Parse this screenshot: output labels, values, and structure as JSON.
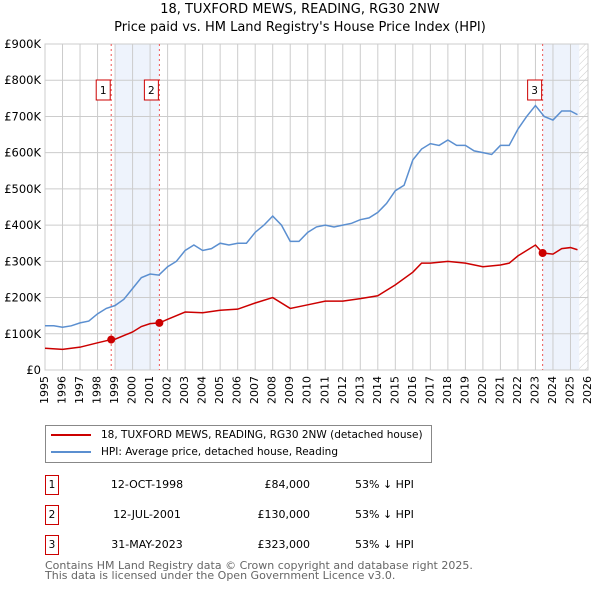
{
  "chart_data": {
    "type": "line",
    "title": "18, TUXFORD MEWS, READING, RG30 2NW",
    "subtitle": "Price paid vs. HM Land Registry's House Price Index (HPI)",
    "xlim": [
      1995,
      2026
    ],
    "ylim": [
      0,
      900000
    ],
    "yticks": [
      {
        "v": 0,
        "label": "£0"
      },
      {
        "v": 100000,
        "label": "£100K"
      },
      {
        "v": 200000,
        "label": "£200K"
      },
      {
        "v": 300000,
        "label": "£300K"
      },
      {
        "v": 400000,
        "label": "£400K"
      },
      {
        "v": 500000,
        "label": "£500K"
      },
      {
        "v": 600000,
        "label": "£600K"
      },
      {
        "v": 700000,
        "label": "£700K"
      },
      {
        "v": 800000,
        "label": "£800K"
      },
      {
        "v": 900000,
        "label": "£900K"
      }
    ],
    "xticks": [
      "1995",
      "1996",
      "1997",
      "1998",
      "1999",
      "2000",
      "2001",
      "2002",
      "2003",
      "2004",
      "2005",
      "2006",
      "2007",
      "2008",
      "2009",
      "2010",
      "2011",
      "2012",
      "2013",
      "2014",
      "2015",
      "2016",
      "2017",
      "2018",
      "2019",
      "2020",
      "2021",
      "2022",
      "2023",
      "2024",
      "2025",
      "2026"
    ],
    "grid": true,
    "series": [
      {
        "name": "18, TUXFORD MEWS, READING, RG30 2NW (detached house)",
        "color": "#cc0000",
        "x": [
          1995,
          1996,
          1997,
          1998,
          1998.78,
          1999,
          2000,
          2000.5,
          2001,
          2001.53,
          2002,
          2003,
          2004,
          2005,
          2006,
          2007,
          2008,
          2009,
          2010,
          2011,
          2012,
          2013,
          2014,
          2015,
          2016,
          2016.5,
          2017,
          2018,
          2019,
          2020,
          2021,
          2021.5,
          2022,
          2023,
          2023.41,
          2024,
          2024.5,
          2025,
          2025.4
        ],
        "y": [
          60000,
          57000,
          63000,
          75000,
          84000,
          85000,
          105000,
          120000,
          128000,
          130000,
          140000,
          160000,
          158000,
          165000,
          168000,
          185000,
          200000,
          170000,
          180000,
          190000,
          190000,
          197000,
          205000,
          235000,
          270000,
          295000,
          295000,
          300000,
          295000,
          285000,
          290000,
          295000,
          315000,
          345000,
          323000,
          320000,
          335000,
          338000,
          332000
        ]
      },
      {
        "name": "HPI: Average price, detached house, Reading",
        "color": "#5b8fd0",
        "x": [
          1995,
          1995.5,
          1996,
          1996.5,
          1997,
          1997.5,
          1998,
          1998.5,
          1999,
          1999.5,
          2000,
          2000.5,
          2001,
          2001.5,
          2002,
          2002.5,
          2003,
          2003.5,
          2004,
          2004.5,
          2005,
          2005.5,
          2006,
          2006.5,
          2007,
          2007.5,
          2008,
          2008.5,
          2009,
          2009.5,
          2010,
          2010.5,
          2011,
          2011.5,
          2012,
          2012.5,
          2013,
          2013.5,
          2014,
          2014.5,
          2015,
          2015.5,
          2016,
          2016.5,
          2017,
          2017.5,
          2018,
          2018.5,
          2019,
          2019.5,
          2020,
          2020.5,
          2021,
          2021.5,
          2022,
          2022.5,
          2023,
          2023.5,
          2024,
          2024.5,
          2025,
          2025.4
        ],
        "y": [
          122000,
          122000,
          118000,
          122000,
          130000,
          135000,
          155000,
          170000,
          178000,
          195000,
          225000,
          255000,
          265000,
          262000,
          285000,
          300000,
          330000,
          345000,
          330000,
          335000,
          350000,
          345000,
          350000,
          350000,
          380000,
          400000,
          425000,
          400000,
          355000,
          355000,
          380000,
          395000,
          400000,
          395000,
          400000,
          405000,
          415000,
          420000,
          435000,
          460000,
          495000,
          510000,
          580000,
          610000,
          625000,
          620000,
          635000,
          620000,
          620000,
          605000,
          600000,
          595000,
          620000,
          620000,
          665000,
          700000,
          730000,
          700000,
          690000,
          715000,
          715000,
          705000
        ]
      }
    ],
    "sales": [
      {
        "label": "1",
        "x": 1998.78,
        "y": 84000,
        "date": "12-OCT-1998",
        "price": "£84,000",
        "hpi": "53% ↓ HPI"
      },
      {
        "label": "2",
        "x": 2001.53,
        "y": 130000,
        "date": "12-JUL-2001",
        "price": "£130,000",
        "hpi": "53% ↓ HPI"
      },
      {
        "label": "3",
        "x": 2023.41,
        "y": 323000,
        "date": "31-MAY-2023",
        "price": "£323,000",
        "hpi": "53% ↓ HPI"
      }
    ],
    "shaded": [
      [
        1999,
        2001.53
      ],
      [
        2023.41,
        2025.5
      ]
    ],
    "hatched_from": 2025.5,
    "legend_position": "below"
  },
  "footer": [
    "Contains HM Land Registry data © Crown copyright and database right 2025.",
    "This data is licensed under the Open Government Licence v3.0."
  ]
}
